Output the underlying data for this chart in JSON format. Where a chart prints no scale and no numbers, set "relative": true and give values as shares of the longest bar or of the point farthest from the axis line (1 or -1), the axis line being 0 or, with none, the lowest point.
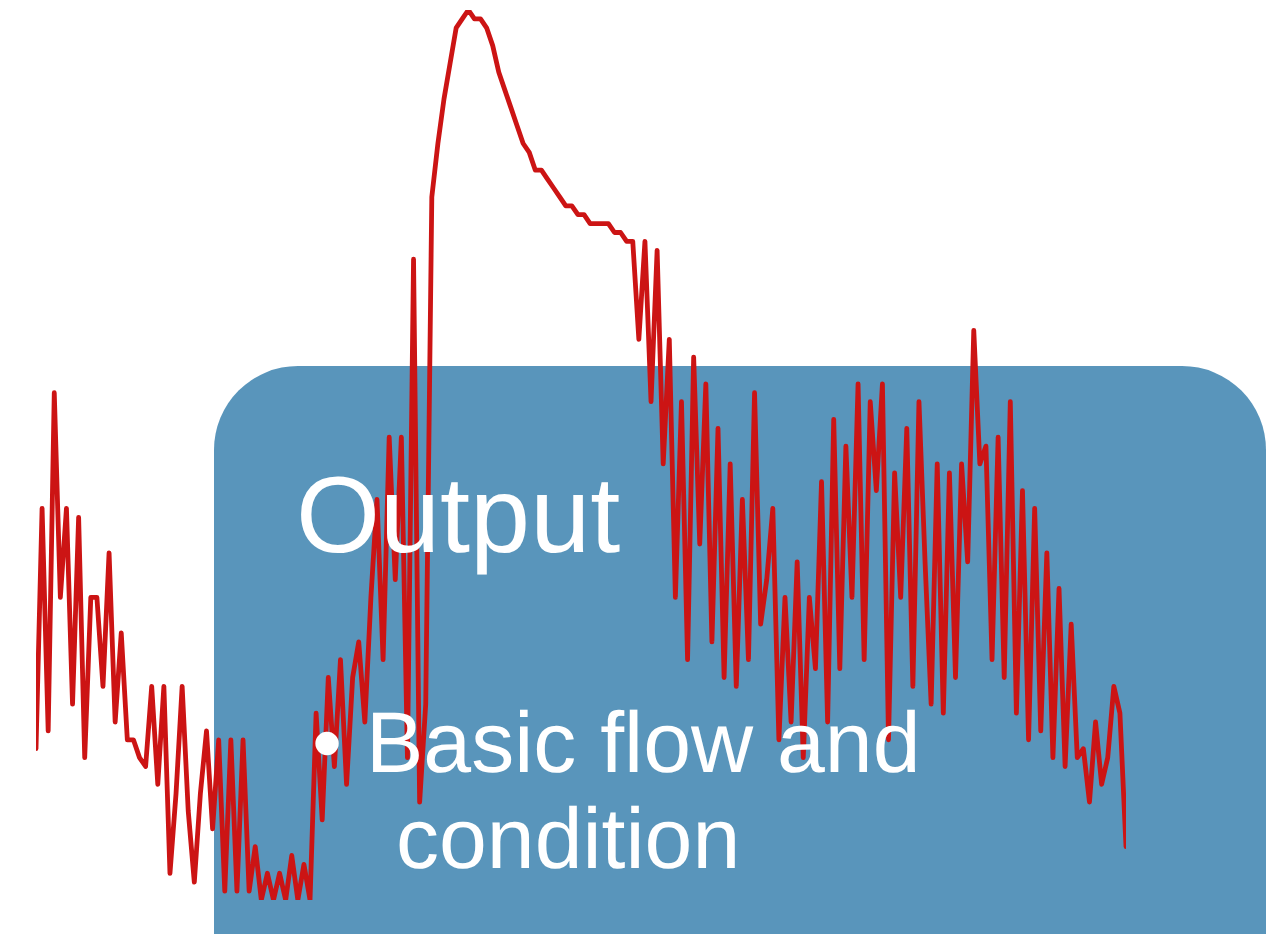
{
  "chart_data": {
    "type": "line",
    "relative": true,
    "categories": [
      null,
      null,
      null,
      null,
      null,
      null,
      null,
      null,
      null,
      null,
      null,
      null,
      null,
      null,
      null,
      null,
      null,
      null,
      null,
      null,
      null,
      null,
      null,
      null,
      null,
      null,
      null,
      null,
      null,
      null,
      null,
      null,
      null,
      null,
      null,
      null,
      null,
      null,
      null,
      null,
      null,
      null,
      null,
      null,
      null,
      null,
      null,
      null,
      null,
      null,
      null,
      null,
      null,
      null,
      null,
      null,
      null,
      null,
      null,
      null,
      null,
      null,
      null,
      null,
      null,
      null,
      null,
      null,
      null,
      null,
      null,
      null,
      null,
      null,
      null,
      null,
      null,
      null,
      null,
      null,
      null,
      null,
      null,
      null,
      null,
      null,
      null,
      null,
      null,
      null,
      null,
      null,
      null,
      null,
      null,
      null,
      null,
      null,
      null,
      null,
      null,
      null,
      null,
      null,
      null,
      null,
      null,
      null,
      null,
      null,
      null,
      null,
      null,
      null,
      null,
      null,
      null,
      null,
      null,
      null,
      null,
      null,
      null,
      null,
      null,
      null,
      null,
      null,
      null,
      null,
      null,
      null,
      null,
      null,
      null,
      null,
      null,
      null,
      null,
      null,
      null,
      null,
      null,
      null,
      null,
      null,
      null,
      null,
      null,
      null,
      null,
      null,
      null,
      null,
      null,
      null,
      null,
      null,
      null,
      null,
      null,
      null,
      null,
      null,
      null,
      null,
      null,
      null,
      null,
      null,
      null,
      null,
      null,
      null,
      null,
      null,
      null,
      null,
      null,
      null
    ],
    "series": [
      {
        "color": "#cc1414",
        "values": [
          0.17,
          0.44,
          0.19,
          0.57,
          0.34,
          0.44,
          0.22,
          0.43,
          0.16,
          0.34,
          0.34,
          0.24,
          0.39,
          0.2,
          0.3,
          0.18,
          0.18,
          0.16,
          0.15,
          0.24,
          0.13,
          0.24,
          0.03,
          0.12,
          0.24,
          0.1,
          0.02,
          0.12,
          0.19,
          0.08,
          0.18,
          0.01,
          0.18,
          0.01,
          0.18,
          0.01,
          0.06,
          0,
          0.03,
          0,
          0.03,
          0.0,
          0.05,
          0.0,
          0.04,
          0.0,
          0.21,
          0.09,
          0.25,
          0.15,
          0.27,
          0.13,
          0.25,
          0.29,
          0.2,
          0.34,
          0.45,
          0.27,
          0.52,
          0.36,
          0.52,
          0.16,
          0.72,
          0.11,
          0.22,
          0.79,
          0.85,
          0.9,
          0.94,
          0.98,
          0.99,
          1,
          0.99,
          0.99,
          0.98,
          0.96,
          0.93,
          0.91,
          0.89,
          0.87,
          0.85,
          0.84,
          0.82,
          0.82,
          0.81,
          0.8,
          0.79,
          0.78,
          0.78,
          0.77,
          0.77,
          0.76,
          0.76,
          0.76,
          0.76,
          0.75,
          0.75,
          0.74,
          0.74,
          0.63,
          0.74,
          0.56,
          0.73,
          0.49,
          0.63,
          0.34,
          0.56,
          0.27,
          0.61,
          0.4,
          0.58,
          0.29,
          0.53,
          0.25,
          0.49,
          0.24,
          0.45,
          0.27,
          0.57,
          0.31,
          0.36,
          0.44,
          0.18,
          0.34,
          0.2,
          0.38,
          0.16,
          0.34,
          0.26,
          0.47,
          0.2,
          0.54,
          0.26,
          0.51,
          0.34,
          0.58,
          0.27,
          0.56,
          0.46,
          0.58,
          0.18,
          0.48,
          0.34,
          0.53,
          0.24,
          0.56,
          0.38,
          0.22,
          0.49,
          0.21,
          0.48,
          0.25,
          0.49,
          0.38,
          0.64,
          0.49,
          0.51,
          0.27,
          0.52,
          0.25,
          0.56,
          0.21,
          0.46,
          0.18,
          0.44,
          0.19,
          0.39,
          0.16,
          0.35,
          0.15,
          0.31,
          0.16,
          0.17,
          0.11,
          0.2,
          0.13,
          0.16,
          0.24,
          0.21,
          0.06
        ]
      }
    ],
    "annotations": [
      "Output",
      "• Basic flow and condition"
    ]
  }
}
